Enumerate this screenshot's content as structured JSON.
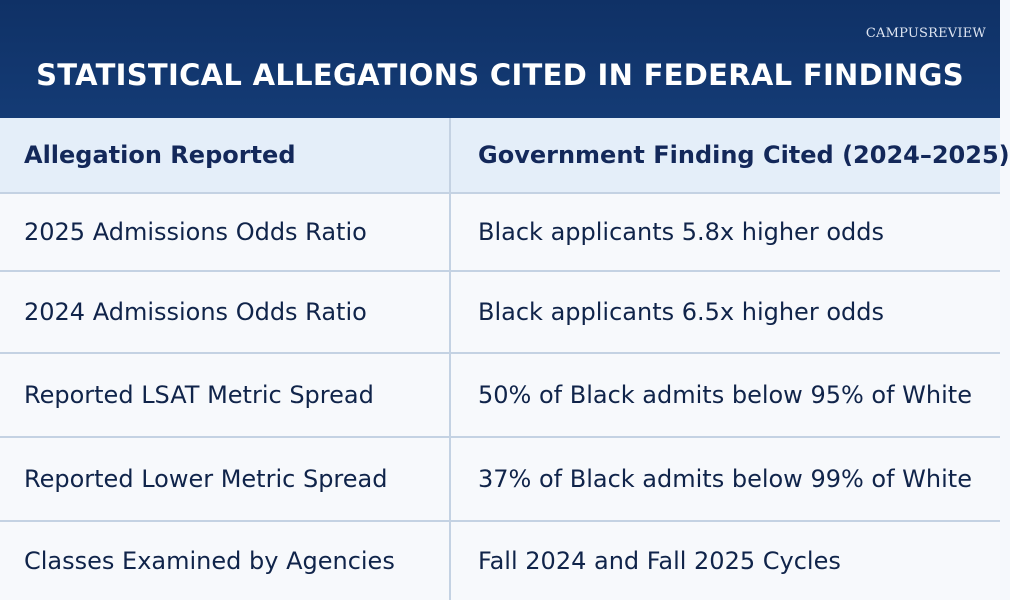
{
  "header": {
    "brand": "CAMPUSREVIEW",
    "title": "STATISTICAL ALLEGATIONS CITED IN FEDERAL FINDINGS"
  },
  "table": {
    "columns": [
      "Allegation Reported",
      "Government Finding Cited (2024–2025)"
    ],
    "rows": [
      [
        "2025 Admissions Odds Ratio",
        "Black applicants 5.8x higher odds"
      ],
      [
        "2024 Admissions Odds Ratio",
        "Black applicants 6.5x higher odds"
      ],
      [
        "Reported LSAT Metric Spread",
        "50% of Black admits below 95% of White"
      ],
      [
        "Reported Lower Metric Spread",
        "37% of Black admits below 99% of White"
      ],
      [
        "Classes Examined by Agencies",
        "Fall 2024 and Fall 2025 Cycles"
      ]
    ]
  },
  "colors": {
    "header_bg": "#143b75",
    "header_row_bg": "#e4eef9",
    "text": "#10244a",
    "border": "#c4d2e3"
  }
}
